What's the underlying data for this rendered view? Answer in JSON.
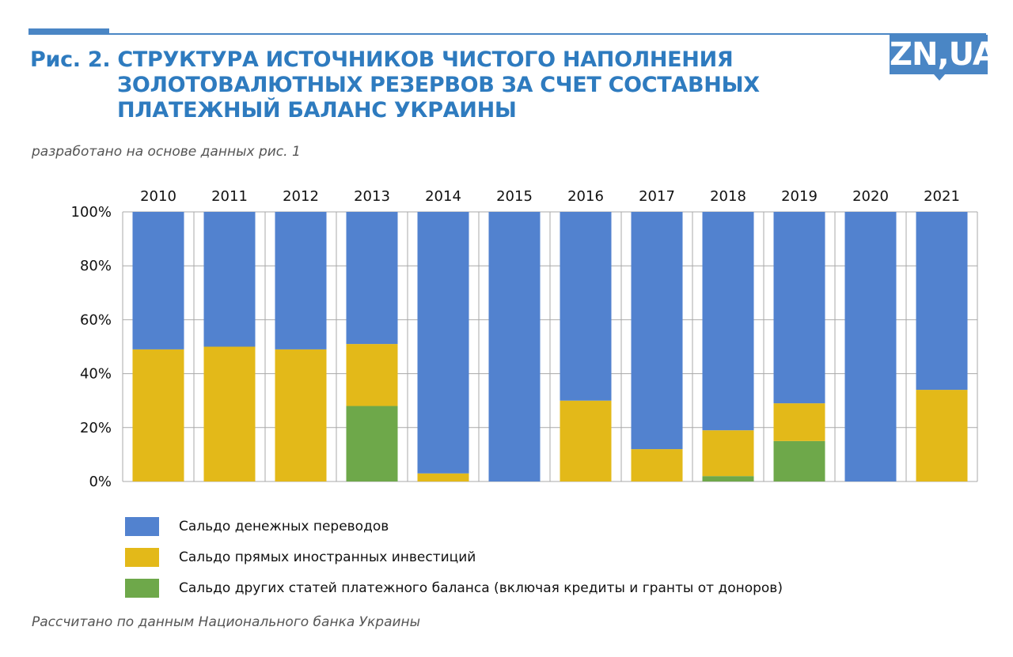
{
  "header": {
    "title_lines": [
      "Рис. 2. СТРУКТУРА ИСТОЧНИКОВ ЧИСТОГО НАПОЛНЕНИЯ",
      "ЗОЛОТОВАЛЮТНЫХ РЕЗЕРВОВ ЗА СЧЕТ СОСТАВНЫХ",
      "ПЛАТЕЖНЫЙ БАЛАНС УКРАИНЫ"
    ],
    "logo": "ZN,UA",
    "subtitle": "разработано на основе данных рис. 1"
  },
  "footer": {
    "source": "Рассчитано по данным Национального банка Украины"
  },
  "colors": {
    "accent": "#2e7bbf",
    "blue": "#5282cf",
    "yellow": "#e3b919",
    "green": "#6ea84a"
  },
  "chart_data": {
    "type": "bar",
    "stacked": true,
    "normalized": true,
    "title": "Рис. 2. Структура источников чистого наполнения золотовалютных резервов за счет составных платежный баланс Украины",
    "categories": [
      "2010",
      "2011",
      "2012",
      "2013",
      "2014",
      "2015",
      "2016",
      "2017",
      "2018",
      "2019",
      "2020",
      "2021"
    ],
    "yticks": [
      "0%",
      "20%",
      "40%",
      "60%",
      "80%",
      "100%"
    ],
    "ylim": [
      0,
      100
    ],
    "legend_position": "bottom",
    "series": [
      {
        "name": "Сальдо других статей платежного баланса (включая кредиты и гранты от доноров)",
        "color": "#6ea84a",
        "values": [
          0,
          0,
          0,
          28,
          0,
          0,
          0,
          0,
          2,
          15,
          0,
          0
        ]
      },
      {
        "name": "Сальдо прямых иностранных инвестиций",
        "color": "#e3b919",
        "values": [
          49,
          50,
          49,
          23,
          3,
          0,
          30,
          12,
          17,
          14,
          0,
          34
        ]
      },
      {
        "name": "Сальдо денежных переводов",
        "color": "#5282cf",
        "values": [
          51,
          50,
          51,
          49,
          97,
          100,
          70,
          88,
          81,
          71,
          100,
          66
        ]
      }
    ]
  }
}
